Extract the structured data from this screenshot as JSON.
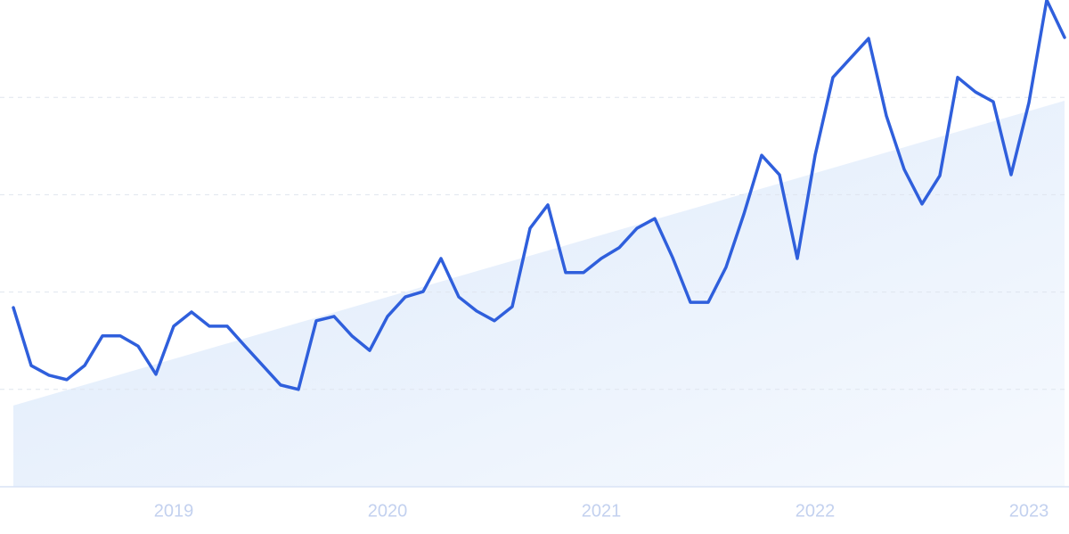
{
  "chart_data": {
    "type": "line",
    "x": [
      2018.25,
      2018.3333,
      2018.4167,
      2018.5,
      2018.5833,
      2018.6667,
      2018.75,
      2018.8333,
      2018.9167,
      2019.0,
      2019.0833,
      2019.1667,
      2019.25,
      2019.3333,
      2019.4167,
      2019.5,
      2019.5833,
      2019.6667,
      2019.75,
      2019.8333,
      2019.9167,
      2020.0,
      2020.0833,
      2020.1667,
      2020.25,
      2020.3333,
      2020.4167,
      2020.5,
      2020.5833,
      2020.6667,
      2020.75,
      2020.8333,
      2020.9167,
      2021.0,
      2021.0833,
      2021.1667,
      2021.25,
      2021.3333,
      2021.4167,
      2021.5,
      2021.5833,
      2021.6667,
      2021.75,
      2021.8333,
      2021.9167,
      2022.0,
      2022.0833,
      2022.1667,
      2022.25,
      2022.3333,
      2022.4167,
      2022.5,
      2022.5833,
      2022.6667,
      2022.75,
      2022.8333,
      2022.9167,
      2023.0,
      2023.0833,
      2023.1667
    ],
    "series": [
      {
        "color": "#2f5fdc",
        "values": [
          36.8,
          24.9,
          22.9,
          22.0,
          24.9,
          31.0,
          31.0,
          28.9,
          23.1,
          33.0,
          35.9,
          33.0,
          33.0,
          28.9,
          24.9,
          20.9,
          20.0,
          34.1,
          35.0,
          31.0,
          28.0,
          35.0,
          39.0,
          40.1,
          46.9,
          39.0,
          36.1,
          34.1,
          37.0,
          53.1,
          57.9,
          44.0,
          44.0,
          46.9,
          49.1,
          53.1,
          55.1,
          47.1,
          37.9,
          37.9,
          45.1,
          56.0,
          68.1,
          64.1,
          46.9,
          68.1,
          84.1,
          88.1,
          92.1,
          76.2,
          65.2,
          58.1,
          63.9,
          84.1,
          81.1,
          79.1,
          64.1,
          78.9,
          100,
          92.3
        ]
      }
    ],
    "trend": {
      "x": [
        2018.25,
        2023.1667
      ],
      "values": [
        16.7,
        79.3
      ],
      "color": "#dce9fb"
    },
    "xlim": [
      2018.1875,
      2023.1875
    ],
    "xticks": [
      2019,
      2020,
      2021,
      2022,
      2023
    ],
    "ylim": [
      0,
      100
    ],
    "yticks": [
      20,
      40,
      60,
      80
    ],
    "grid": true
  }
}
